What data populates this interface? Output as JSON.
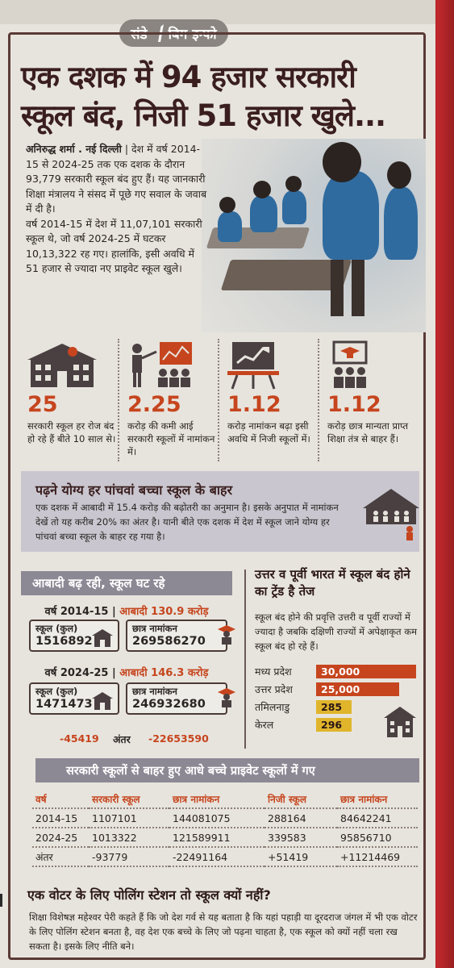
{
  "tag": {
    "left": "संडे",
    "right": "बिग इन्फो"
  },
  "headline": {
    "line1": "एक दशक में 94 हजार सरकारी",
    "line2": "स्कूल बंद, निजी 51 हजार खुले..."
  },
  "lead": {
    "byline": "अनिरुद्ध शर्मा . नई दिल्ली",
    "para1": "देश में वर्ष 2014-15 से 2024-25 तक एक दशक के दौरान 93,779 सरकारी स्कूल बंद हुए हैं। यह जानकारी शिक्षा मंत्रालय ने संसद में पूछे गए सवाल के जवाब में दी है।",
    "para2": "वर्ष 2014-15 में देश में 11,07,101 सरकारी स्कूल थे, जो वर्ष 2024-25 में घटकर 10,13,322 रह गए। हालांकि, इसी अवधि में 51 हजार से ज्यादा नए प्राइवेट स्कूल खुले।"
  },
  "stats": [
    {
      "icon": "school-building-icon",
      "num": "25",
      "desc": "सरकारी स्कूल हर रोज बंद हो रहे हैं बीते 10 साल से।"
    },
    {
      "icon": "presenter-chart-icon",
      "num": "2.25",
      "desc": "करोड़ की कमी आई सरकारी स्कूलों में नामांकन में।"
    },
    {
      "icon": "growth-chart-board-icon",
      "num": "1.12",
      "desc": "करोड़ नामांकन बढ़ा इसी अवधि में निजी स्कूलों में।"
    },
    {
      "icon": "graduation-students-icon",
      "num": "1.12",
      "desc": "करोड़ छात्र मान्यता प्राप्त शिक्षा तंत्र से बाहर हैं।"
    }
  ],
  "banner": {
    "title": "पढ़ने योग्य हर पांचवां बच्चा स्कूल के बाहर",
    "body": "एक दशक में आबादी में 15.4 करोड़ की बढ़ोतरी का अनुमान है। इसके अनुपात में नामांकन देखें तो यह करीब 20% का अंतर है। यानी बीते एक दशक में देश में स्कूल जाने योग्य हर पांचवां बच्चा स्कूल के बाहर रह गया है।"
  },
  "population": {
    "header": "आबादी बढ़ रही, स्कूल घट रहे",
    "y1": {
      "year": "वर्ष 2014-15 |",
      "pop": "आबादी 130.9 करोड़",
      "schools_label": "स्कूल (कुल)",
      "schools": "1516892",
      "students_label": "छात्र नामांकन",
      "students": "269586270"
    },
    "y2": {
      "year": "वर्ष 2024-25 |",
      "pop": "आबादी 146.3 करोड़",
      "schools_label": "स्कूल (कुल)",
      "schools": "1471473",
      "students_label": "छात्र नामांकन",
      "students": "246932680"
    },
    "diff_schools": "-45419",
    "diff_label": "अंतर",
    "diff_students": "-22653590"
  },
  "trend": {
    "title": "उत्तर व पूर्वी भारत में स्कूल बंद होने का ट्रेंड है तेज",
    "body": "स्कूल बंद होने की प्रवृत्ति उत्तरी व पूर्वी राज्यों में ज्यादा है जबकि दक्षिणी राज्यों में अपेक्षाकृत कम स्कूल बंद हो रहे हैं।",
    "colors": {
      "high": "#c6451e",
      "low": "#e0b52c"
    }
  },
  "chart_data": {
    "type": "bar",
    "categories": [
      "मध्य प्रदेश",
      "उत्तर प्रदेश",
      "तमिलनाडु",
      "केरल"
    ],
    "values": [
      30000,
      25000,
      285,
      296
    ],
    "labels": [
      "30,000",
      "25,000",
      "285",
      "296"
    ]
  },
  "table": {
    "header": "सरकारी स्कूलों से बाहर हुए आधे बच्चे प्राइवेट स्कूलों में गए",
    "columns": [
      "वर्ष",
      "सरकारी स्कूल",
      "छात्र नामांकन",
      "निजी स्कूल",
      "छात्र नामांकन"
    ],
    "rows": [
      [
        "2014-15",
        "1107101",
        "144081075",
        "288164",
        "84642241"
      ],
      [
        "2024-25",
        "1013322",
        "121589911",
        "339583",
        "95856710"
      ],
      [
        "अंतर",
        "-93779",
        "-22491164",
        "+51419",
        "+11214469"
      ]
    ]
  },
  "bottom": {
    "title": "एक वोटर के लिए पोलिंग स्टेशन तो स्कूल क्यों नहीं?",
    "body": "शिक्षा विशेषज्ञ महेश्वर पेरी कहते हैं कि जो देश गर्व से यह बताता है कि यहां पहाड़ी या दूरदराज जंगल में भी एक वोटर के लिए पोलिंग स्टेशन बनता है, वह देश एक बच्चे के लिए जो पढ़ना चाहता है, एक स्कूल को क्यों नहीं चला रख सकता है। इसके लिए नीति बने।"
  }
}
